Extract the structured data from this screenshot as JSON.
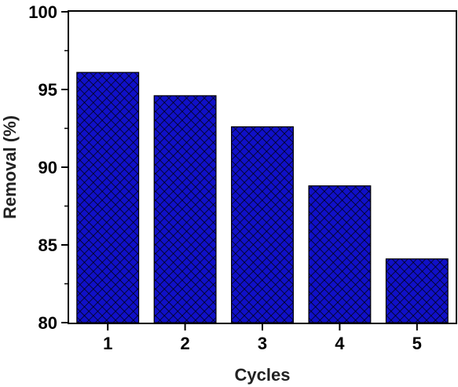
{
  "chart_data": {
    "type": "bar",
    "title": "",
    "xlabel": "Cycles",
    "ylabel": "Removal (%)",
    "categories": [
      "1",
      "2",
      "3",
      "4",
      "5"
    ],
    "values": [
      96.1,
      94.6,
      92.6,
      88.8,
      84.1
    ],
    "ylim": [
      80,
      100
    ],
    "yticks": [
      "80",
      "85",
      "90",
      "95",
      "100"
    ],
    "grid": false,
    "legend": "none",
    "bar_color": "#1010c8",
    "hatch_color": "#000000",
    "hatch": "crosshatch"
  }
}
